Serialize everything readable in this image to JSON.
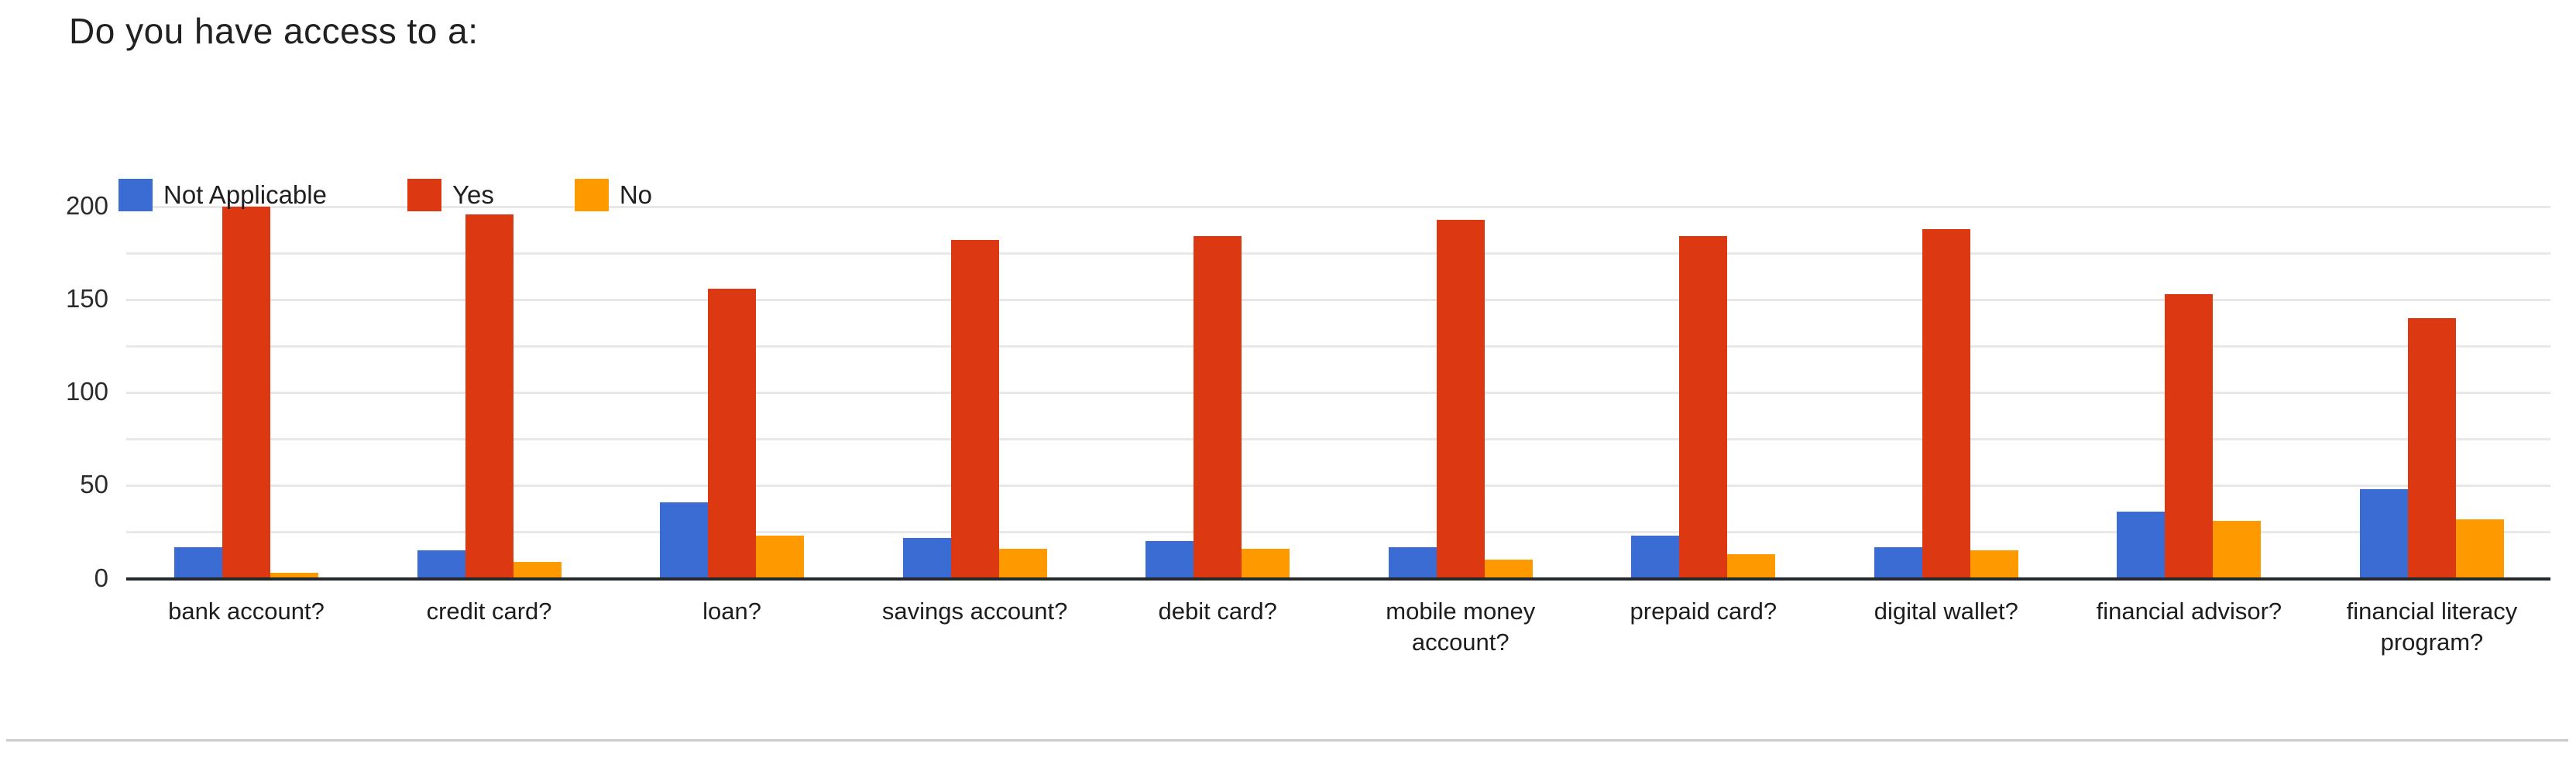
{
  "page": {
    "title": "Do you have access to a:"
  },
  "colors": {
    "not_applicable": "#3B6CD3",
    "yes": "#DC3912",
    "no": "#FF9900",
    "gridline": "#E8E8E8",
    "baseline": "#24292D",
    "divider": "#CBCBCB",
    "title_text": "#212124",
    "label_text": "#1D1D1D"
  },
  "chart_data": {
    "type": "bar",
    "title": "Do you have access to a:",
    "legend_position": "top",
    "grid": true,
    "categories": [
      "bank account?",
      "credit card?",
      "loan?",
      "savings account?",
      "debit card?",
      "mobile money account?",
      "prepaid card?",
      "digital wallet?",
      "financial advisor?",
      "financial literacy program?"
    ],
    "series": [
      {
        "name": "Not Applicable",
        "color": "#3B6CD3",
        "values": [
          17,
          15,
          41,
          22,
          20,
          17,
          23,
          17,
          36,
          48
        ]
      },
      {
        "name": "Yes",
        "color": "#DC3912",
        "values": [
          200,
          196,
          156,
          182,
          184,
          193,
          184,
          188,
          153,
          140
        ]
      },
      {
        "name": "No",
        "color": "#FF9900",
        "values": [
          3,
          9,
          23,
          16,
          16,
          10,
          13,
          15,
          31,
          32
        ]
      }
    ],
    "y_axis": {
      "ticks": [
        0,
        50,
        100,
        150,
        200
      ],
      "minor_step": 25,
      "max": 200
    }
  }
}
